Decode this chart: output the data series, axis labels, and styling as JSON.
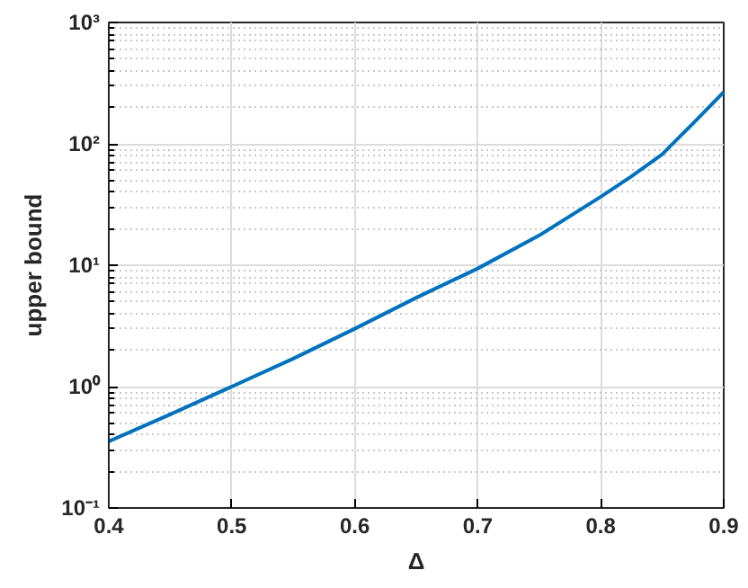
{
  "chart_data": {
    "type": "line",
    "xlabel": "Δ",
    "ylabel": "upper bound",
    "x": [
      0.4,
      0.45,
      0.5,
      0.55,
      0.6,
      0.65,
      0.7,
      0.75,
      0.8,
      0.825,
      0.85,
      0.8625,
      0.875,
      0.8875,
      0.9
    ],
    "series": [
      {
        "color": "#0072bd",
        "values": [
          0.354,
          0.59,
          1.0,
          1.7,
          3.0,
          5.4,
          9.4,
          17.6,
          36.6,
          54,
          82,
          110,
          147,
          198,
          267
        ]
      }
    ],
    "xlim": [
      0.4,
      0.9
    ],
    "xticks": [
      0.4,
      0.5,
      0.6,
      0.7,
      0.8,
      0.9
    ],
    "ylim": [
      0.1,
      1000
    ],
    "yticks": [
      {
        "value": 0.1,
        "label": "10⁻¹"
      },
      {
        "value": 1,
        "label": "10⁰"
      },
      {
        "value": 10,
        "label": "10¹"
      },
      {
        "value": 100,
        "label": "10²"
      },
      {
        "value": 1000,
        "label": "10³"
      }
    ],
    "log": "y",
    "grid": true,
    "marker": "none",
    "line_style": "solid"
  }
}
